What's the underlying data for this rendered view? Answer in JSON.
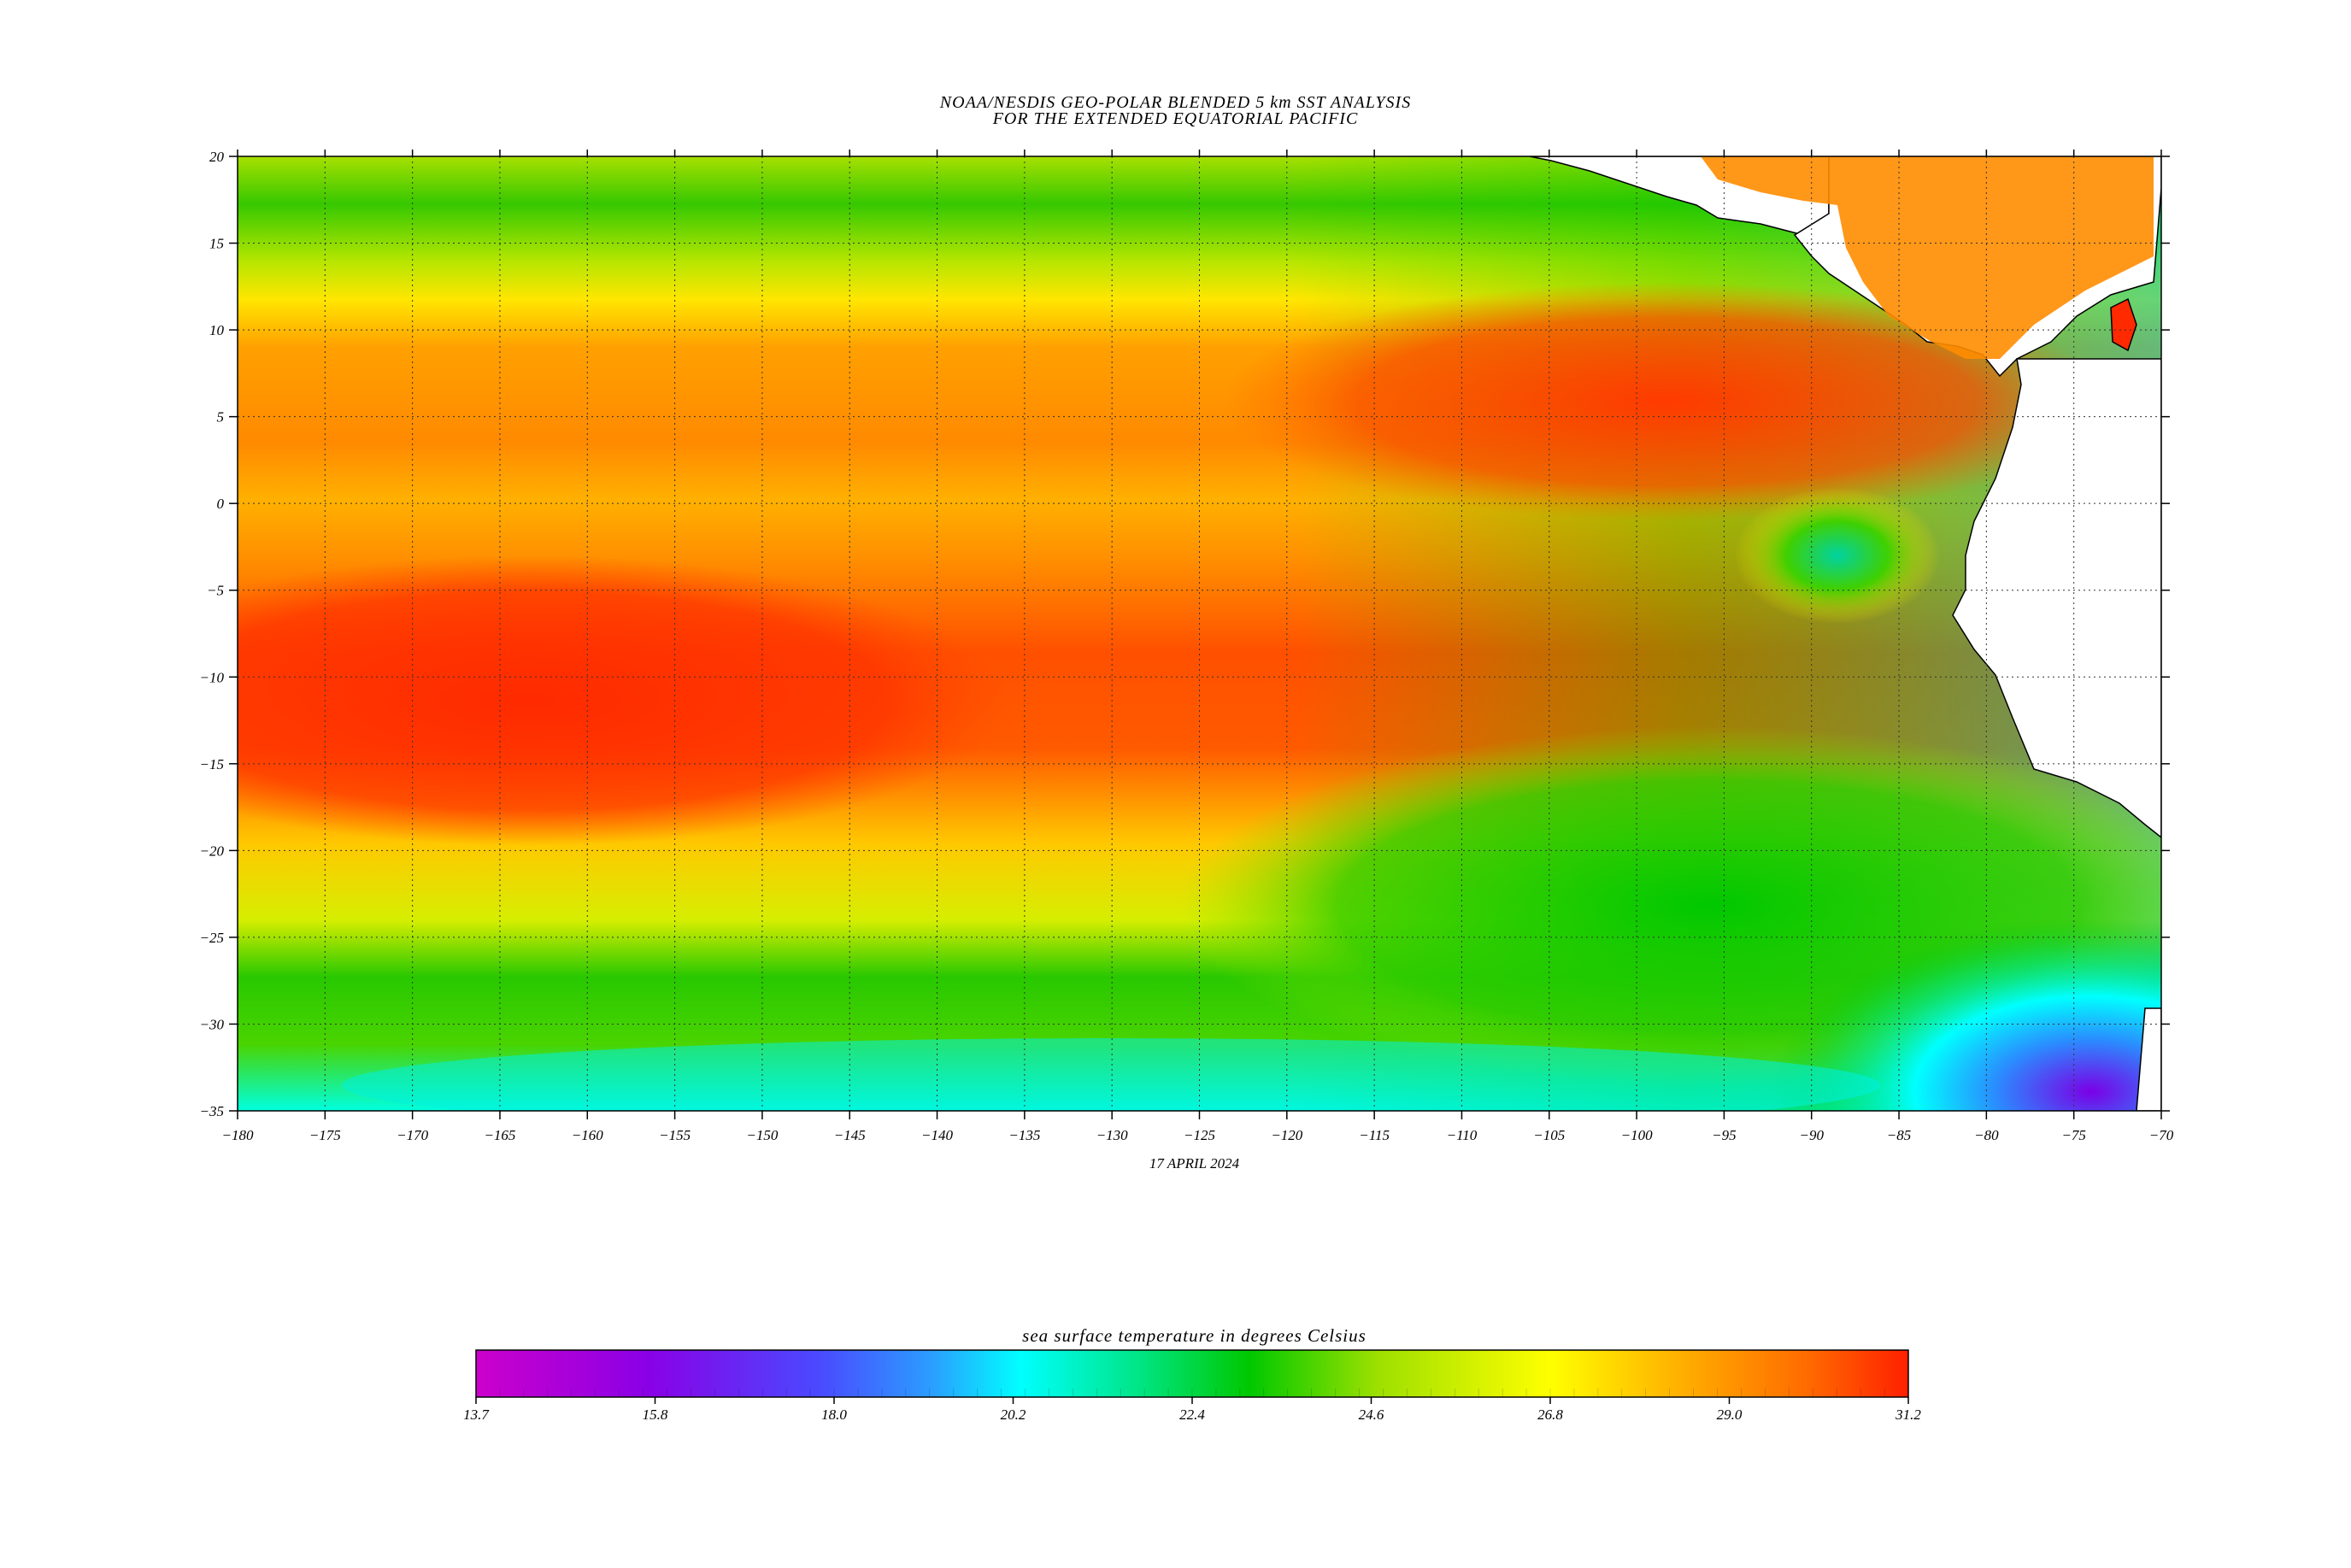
{
  "title_line1": "NOAA/NESDIS GEO-POLAR BLENDED 5 km SST ANALYSIS",
  "title_line2": "FOR THE EXTENDED EQUATORIAL PACIFIC",
  "date": "17 APRIL 2024",
  "map": {
    "lon_range": [
      -180,
      -70
    ],
    "lat_range": [
      -35,
      20
    ],
    "lon_ticks": [
      -180,
      -175,
      -170,
      -165,
      -160,
      -155,
      -150,
      -145,
      -140,
      -135,
      -130,
      -125,
      -120,
      -115,
      -110,
      -105,
      -100,
      -95,
      -90,
      -85,
      -80,
      -75,
      -70
    ],
    "lat_ticks": [
      20,
      15,
      10,
      5,
      0,
      -5,
      -10,
      -15,
      -20,
      -25,
      -30,
      -35
    ],
    "grid": "dotted",
    "land_color": "#ffffff",
    "coastline_color": "#000000"
  },
  "colorbar": {
    "label": "sea surface temperature in degrees Celsius",
    "min": 13.7,
    "max": 31.2,
    "tick_labels": [
      "13.7",
      "15.8",
      "18.0",
      "20.2",
      "22.4",
      "24.6",
      "26.8",
      "29.0",
      "31.2"
    ],
    "colors": [
      "#cc00cc",
      "#8a00e6",
      "#5a2cff",
      "#2a8cff",
      "#00ffff",
      "#00e67a",
      "#00c800",
      "#8ee000",
      "#ffff00",
      "#ffb400",
      "#ff6a00",
      "#ff2a00"
    ]
  }
}
